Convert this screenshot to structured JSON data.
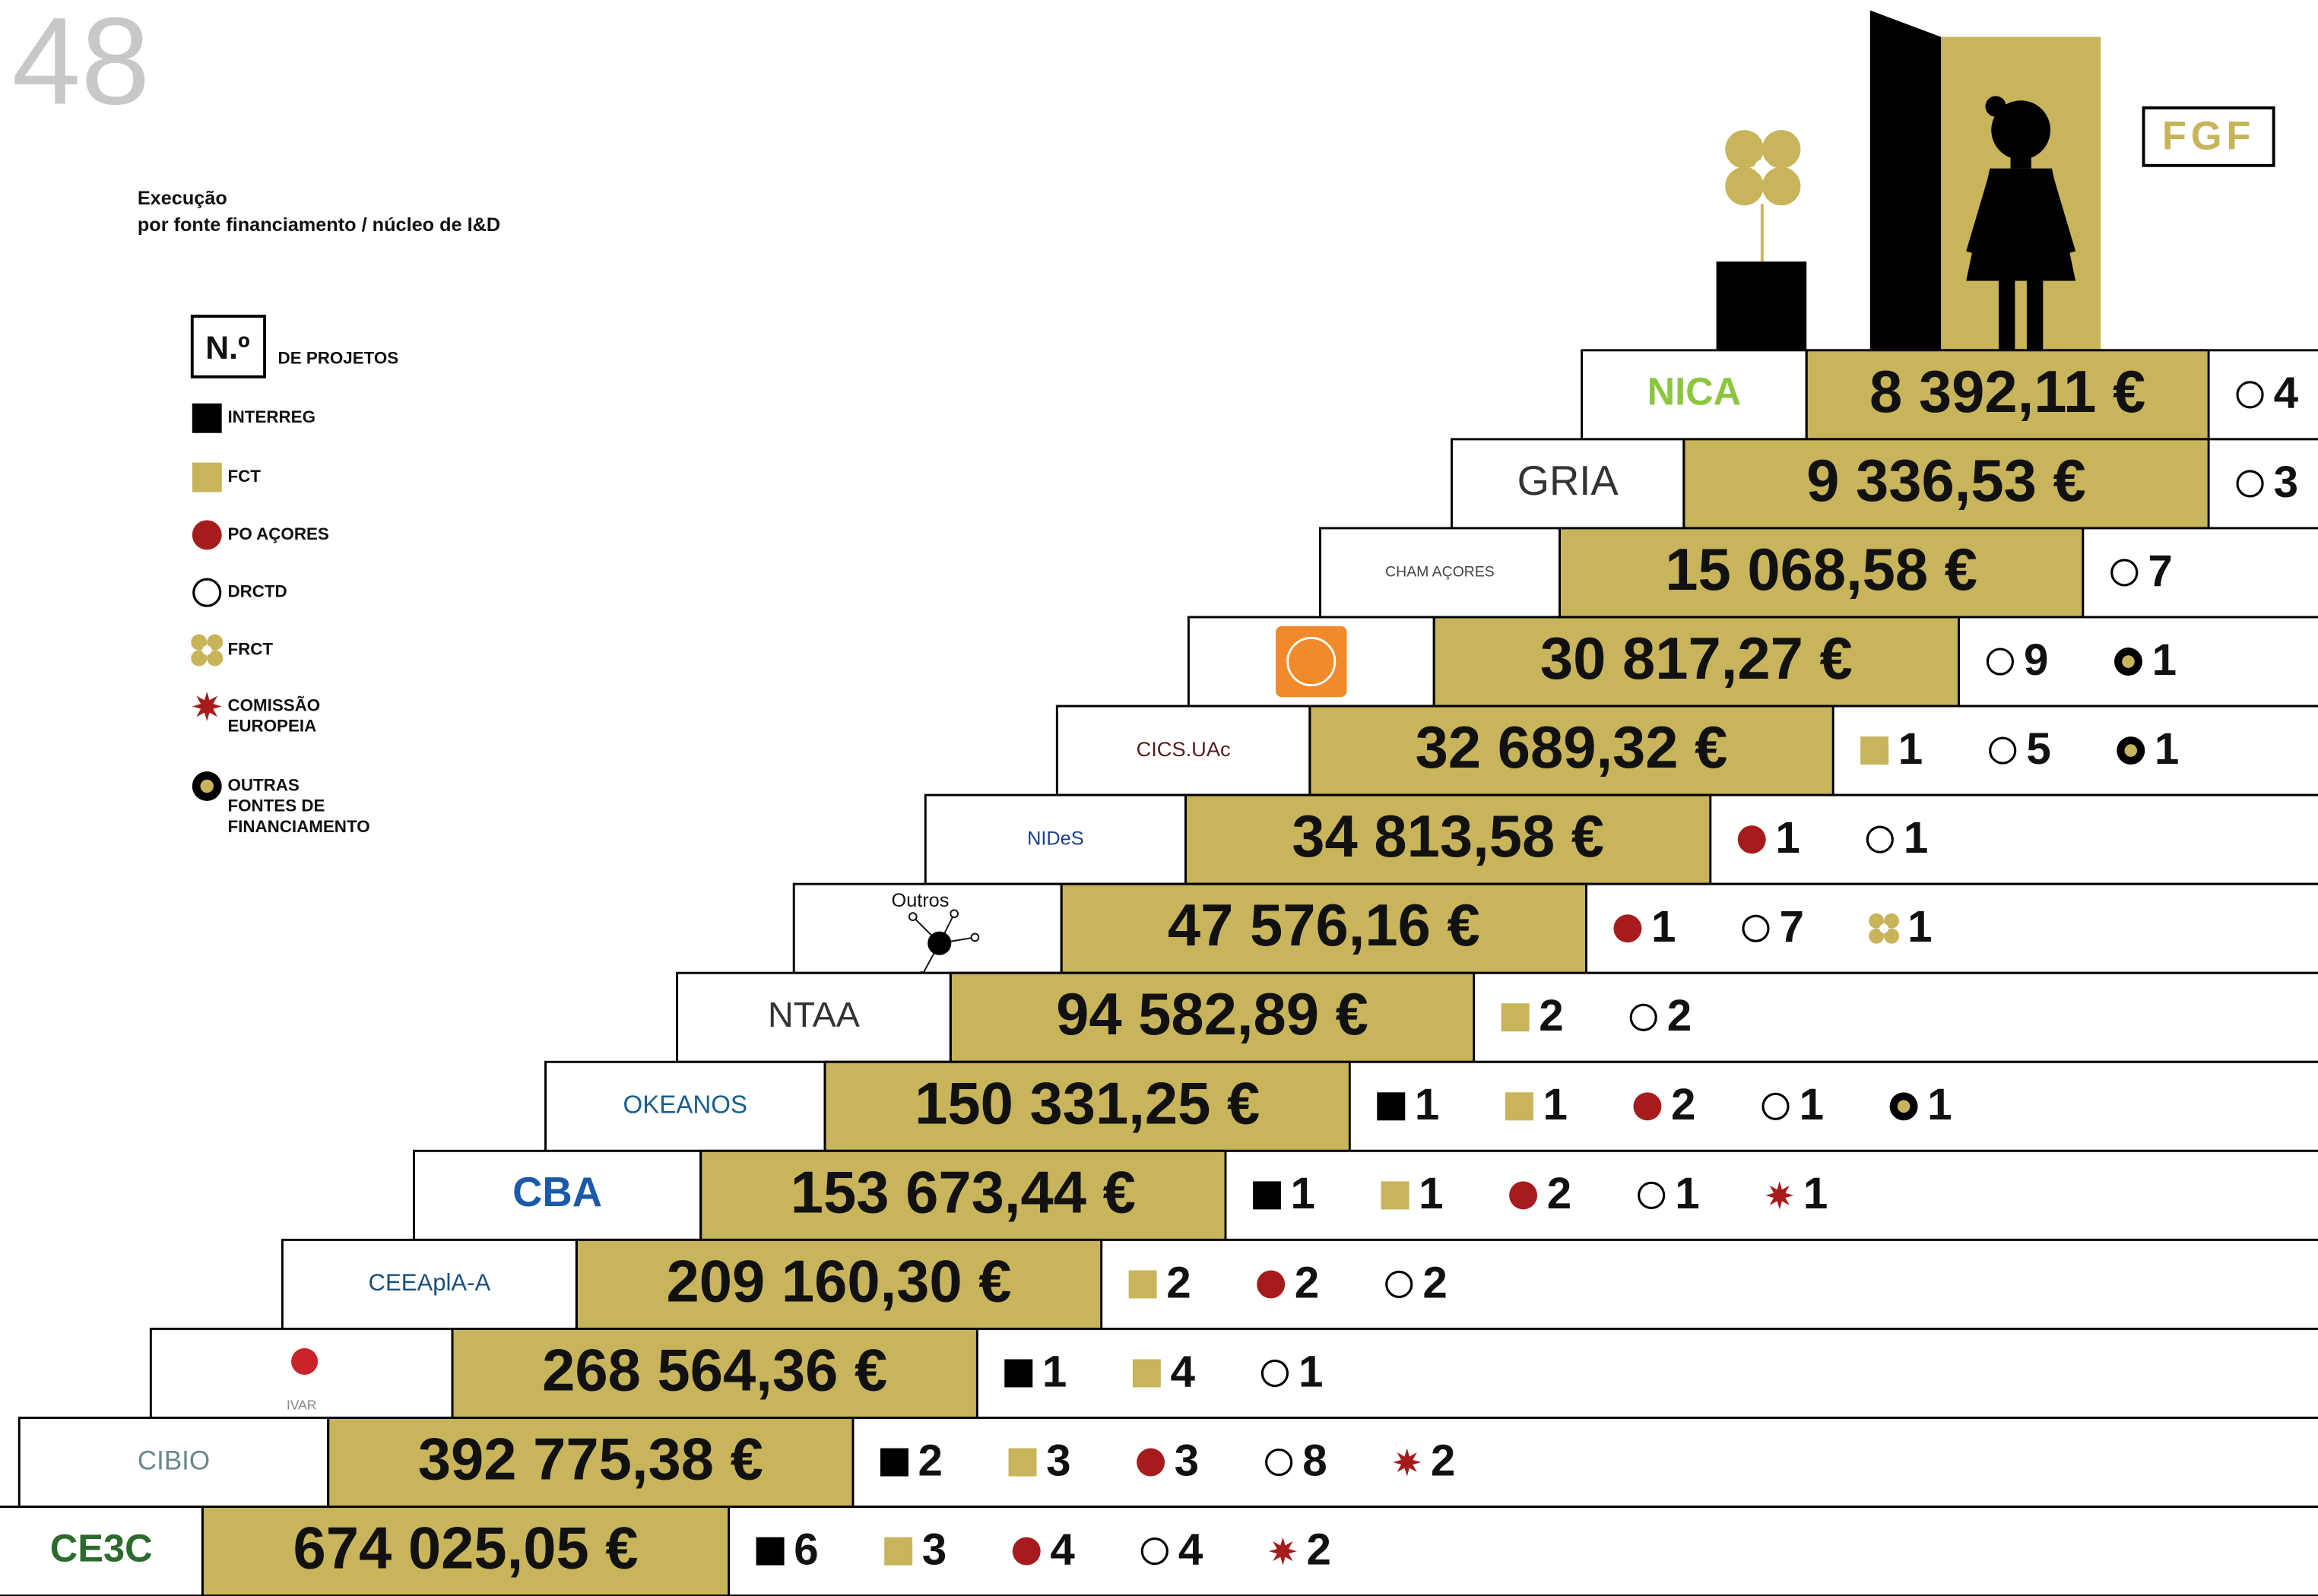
{
  "page_number": "48",
  "title": [
    "Execução",
    "por fonte financiamento / núcleo de I&D"
  ],
  "badge": "FGF",
  "legend_header": {
    "symbol": "N.º",
    "label": "DE PROJETOS"
  },
  "legend": [
    {
      "symbol": "black-square",
      "label": [
        "INTERREG"
      ]
    },
    {
      "symbol": "gold-square",
      "label": [
        "FCT"
      ]
    },
    {
      "symbol": "red-dot",
      "label": [
        "PO AÇORES"
      ]
    },
    {
      "symbol": "open-circle",
      "label": [
        "DRCTD"
      ]
    },
    {
      "symbol": "gold-flower",
      "label": [
        "FRCT"
      ]
    },
    {
      "symbol": "red-star",
      "label": [
        "COMISSÃO",
        "EUROPEIA"
      ]
    },
    {
      "symbol": "gold-dot",
      "label": [
        "OUTRAS",
        "FONTES DE",
        "FINANCIAMENTO"
      ]
    }
  ],
  "rows": [
    {
      "logo": "NICA",
      "amount": "8 392,11 €",
      "projects": [
        {
          "symbol": "open-circle",
          "count": 4
        }
      ]
    },
    {
      "logo": "GRIA",
      "amount": "9 336,53 €",
      "projects": [
        {
          "symbol": "open-circle",
          "count": 3
        }
      ]
    },
    {
      "logo": "CHAM AÇORES",
      "amount": "15 068,58 €",
      "projects": [
        {
          "symbol": "open-circle",
          "count": 7
        }
      ]
    },
    {
      "logo": null,
      "amount": "30 817,27 €",
      "projects": [
        {
          "symbol": "open-circle",
          "count": 9
        },
        {
          "symbol": "gold-dot",
          "count": 1
        }
      ]
    },
    {
      "logo": "CICS.UAc",
      "amount": "32 689,32 €",
      "projects": [
        {
          "symbol": "gold-square",
          "count": 1
        },
        {
          "symbol": "open-circle",
          "count": 5
        },
        {
          "symbol": "gold-dot",
          "count": 1
        }
      ]
    },
    {
      "logo": "NIDeS",
      "amount": "34 813,58 €",
      "projects": [
        {
          "symbol": "red-dot",
          "count": 1
        },
        {
          "symbol": "open-circle",
          "count": 1
        }
      ]
    },
    {
      "logo": "Outros",
      "amount": "47 576,16 €",
      "projects": [
        {
          "symbol": "red-dot",
          "count": 1
        },
        {
          "symbol": "open-circle",
          "count": 7
        },
        {
          "symbol": "gold-flower",
          "count": 1
        }
      ]
    },
    {
      "logo": "NTAA",
      "amount": "94 582,89 €",
      "projects": [
        {
          "symbol": "gold-square",
          "count": 2
        },
        {
          "symbol": "open-circle",
          "count": 2
        }
      ]
    },
    {
      "logo": "OKEANOS",
      "amount": "150 331,25 €",
      "projects": [
        {
          "symbol": "black-square",
          "count": 1
        },
        {
          "symbol": "gold-square",
          "count": 1
        },
        {
          "symbol": "red-dot",
          "count": 2
        },
        {
          "symbol": "open-circle",
          "count": 1
        },
        {
          "symbol": "gold-dot",
          "count": 1
        }
      ]
    },
    {
      "logo": "CBA",
      "amount": "153 673,44 €",
      "projects": [
        {
          "symbol": "black-square",
          "count": 1
        },
        {
          "symbol": "gold-square",
          "count": 1
        },
        {
          "symbol": "red-dot",
          "count": 2
        },
        {
          "symbol": "open-circle",
          "count": 1
        },
        {
          "symbol": "red-star",
          "count": 1
        }
      ]
    },
    {
      "logo": "CEEAplA-A",
      "amount": "209 160,30 €",
      "projects": [
        {
          "symbol": "gold-square",
          "count": 2
        },
        {
          "symbol": "red-dot",
          "count": 2
        },
        {
          "symbol": "open-circle",
          "count": 2
        }
      ]
    },
    {
      "logo": "IVAR",
      "amount": "268 564,36 €",
      "projects": [
        {
          "symbol": "black-square",
          "count": 1
        },
        {
          "symbol": "gold-square",
          "count": 4
        },
        {
          "symbol": "open-circle",
          "count": 1
        }
      ]
    },
    {
      "logo": "CIBIO",
      "amount": "392 775,38 €",
      "projects": [
        {
          "symbol": "black-square",
          "count": 2
        },
        {
          "symbol": "gold-square",
          "count": 3
        },
        {
          "symbol": "red-dot",
          "count": 3
        },
        {
          "symbol": "open-circle",
          "count": 8
        },
        {
          "symbol": "red-star",
          "count": 2
        }
      ]
    },
    {
      "logo": "CE3C",
      "amount": "674 025,05 €",
      "projects": [
        {
          "symbol": "black-square",
          "count": 6
        },
        {
          "symbol": "gold-square",
          "count": 3
        },
        {
          "symbol": "red-dot",
          "count": 4
        },
        {
          "symbol": "open-circle",
          "count": 4
        },
        {
          "symbol": "red-star",
          "count": 2
        }
      ]
    }
  ]
}
